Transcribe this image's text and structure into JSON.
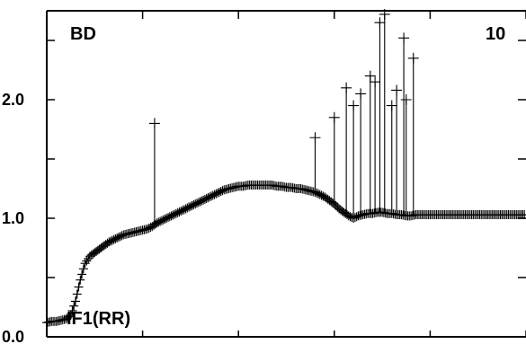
{
  "chart_data": {
    "type": "scatter",
    "corner_labels": {
      "top_left": "BD",
      "top_right": "10",
      "bottom_left": "IF1(RR)"
    },
    "y_tick_labels": [
      "0.0",
      "1.0",
      "2.0"
    ],
    "x_tick_labels": [],
    "xlim": [
      0,
      100
    ],
    "ylim": [
      0,
      2.75
    ],
    "y_ticks": [
      0.0,
      0.5,
      1.0,
      1.5,
      2.0,
      2.5
    ],
    "x_ticks": [
      0,
      20,
      40,
      60,
      80,
      100
    ],
    "marker": "plus",
    "grid": false,
    "series": [
      {
        "values_x": [
          0,
          1,
          2,
          3,
          4,
          5,
          6,
          7,
          8,
          9,
          10,
          11,
          12,
          13,
          14,
          15,
          16,
          17,
          18,
          19,
          20,
          21,
          22,
          23,
          24,
          25,
          26,
          27,
          28,
          29,
          30,
          31,
          32,
          33,
          34,
          35,
          36,
          37,
          38,
          39,
          40,
          41,
          42,
          43,
          44,
          45,
          46,
          47,
          48,
          49,
          50,
          51,
          52,
          53,
          54,
          55,
          56,
          57,
          58,
          59,
          60,
          61,
          62,
          63,
          64,
          65,
          66,
          67,
          68,
          69,
          70,
          71,
          72,
          73,
          74,
          75,
          76,
          77,
          78,
          79,
          80,
          81,
          82,
          83,
          84,
          85,
          86,
          87,
          88,
          89,
          90,
          91,
          92,
          93,
          94,
          95,
          96,
          97,
          98,
          99,
          100
        ],
        "values_y": [
          0.12,
          0.13,
          0.13,
          0.14,
          0.15,
          0.18,
          0.3,
          0.48,
          0.62,
          0.68,
          0.71,
          0.74,
          0.77,
          0.8,
          0.82,
          0.84,
          0.86,
          0.87,
          0.88,
          0.89,
          0.9,
          0.91,
          0.93,
          0.96,
          0.98,
          1.0,
          1.02,
          1.04,
          1.06,
          1.08,
          1.1,
          1.12,
          1.14,
          1.16,
          1.18,
          1.2,
          1.22,
          1.24,
          1.25,
          1.26,
          1.27,
          1.27,
          1.28,
          1.28,
          1.28,
          1.28,
          1.28,
          1.28,
          1.27,
          1.27,
          1.26,
          1.26,
          1.25,
          1.25,
          1.24,
          1.23,
          1.22,
          1.2,
          1.18,
          1.15,
          1.12,
          1.08,
          1.05,
          1.02,
          1.0,
          1.02,
          1.03,
          1.04,
          1.04,
          1.05,
          1.05,
          1.04,
          1.04,
          1.03,
          1.03,
          1.02,
          1.02,
          1.03,
          1.03,
          1.03,
          1.03,
          1.03,
          1.03,
          1.03,
          1.03,
          1.03,
          1.03,
          1.03,
          1.03,
          1.03,
          1.03,
          1.03,
          1.03,
          1.03,
          1.03,
          1.03,
          1.03,
          1.03,
          1.03,
          1.03,
          1.03
        ]
      },
      {
        "spikes_x": [
          22.5,
          56,
          60,
          62.5,
          64,
          65.5,
          67.5,
          68.5,
          69.5,
          70.5,
          72,
          73,
          74.5,
          75,
          76.5
        ],
        "spikes_y": [
          1.8,
          1.68,
          1.85,
          2.1,
          1.95,
          2.05,
          2.2,
          2.15,
          2.65,
          2.72,
          1.95,
          2.08,
          2.52,
          2.0,
          2.35
        ]
      }
    ]
  }
}
